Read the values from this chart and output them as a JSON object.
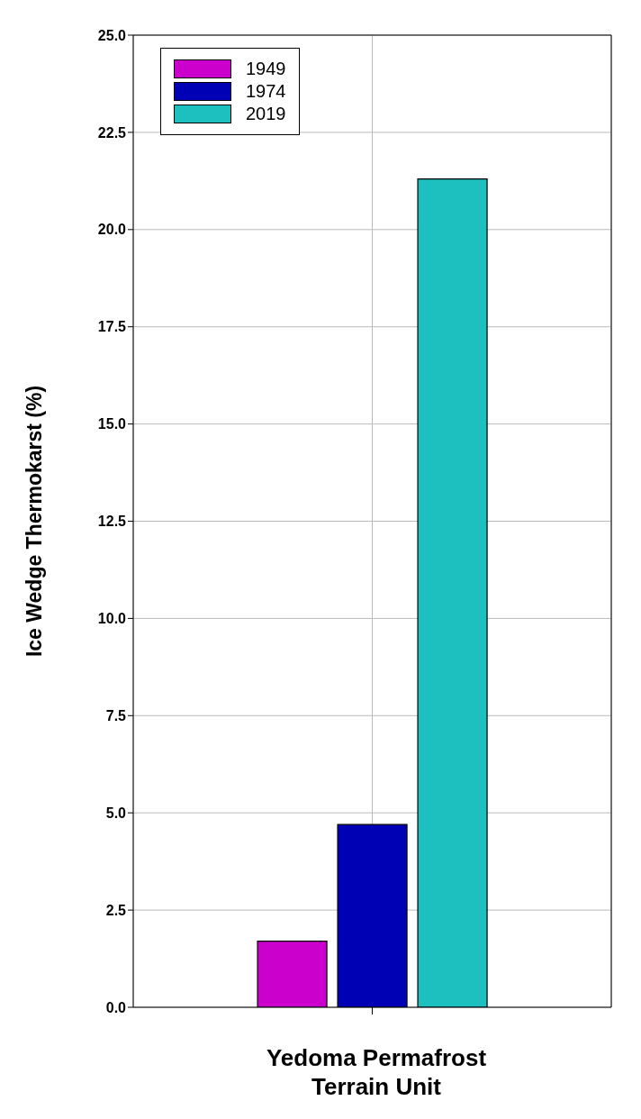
{
  "chart_data": {
    "type": "bar",
    "xlabel": "Yedoma Permafrost Terrain Unit",
    "ylabel": "Ice Wedge Thermokarst (%)",
    "categories": [
      null
    ],
    "series": [
      {
        "name": "1949",
        "color": "#cc00cc",
        "values": [
          1.7
        ]
      },
      {
        "name": "1974",
        "color": "#0000b4",
        "values": [
          4.7
        ]
      },
      {
        "name": "2019",
        "color": "#1ebfbf",
        "values": [
          21.3
        ]
      }
    ],
    "ylim": [
      0,
      25
    ],
    "yticks": [
      {
        "value": 0,
        "label": "0.0"
      },
      {
        "value": 2.5,
        "label": "2.5"
      },
      {
        "value": 5,
        "label": "5.0"
      },
      {
        "value": 7.5,
        "label": "7.5"
      },
      {
        "value": 10,
        "label": "10.0"
      },
      {
        "value": 12.5,
        "label": "12.5"
      },
      {
        "value": 15,
        "label": "15.0"
      },
      {
        "value": 17.5,
        "label": "17.5"
      },
      {
        "value": 20,
        "label": "20.0"
      },
      {
        "value": 22.5,
        "label": "22.5"
      },
      {
        "value": 25,
        "label": "25.0"
      }
    ],
    "grid": true,
    "legend": "top left"
  }
}
